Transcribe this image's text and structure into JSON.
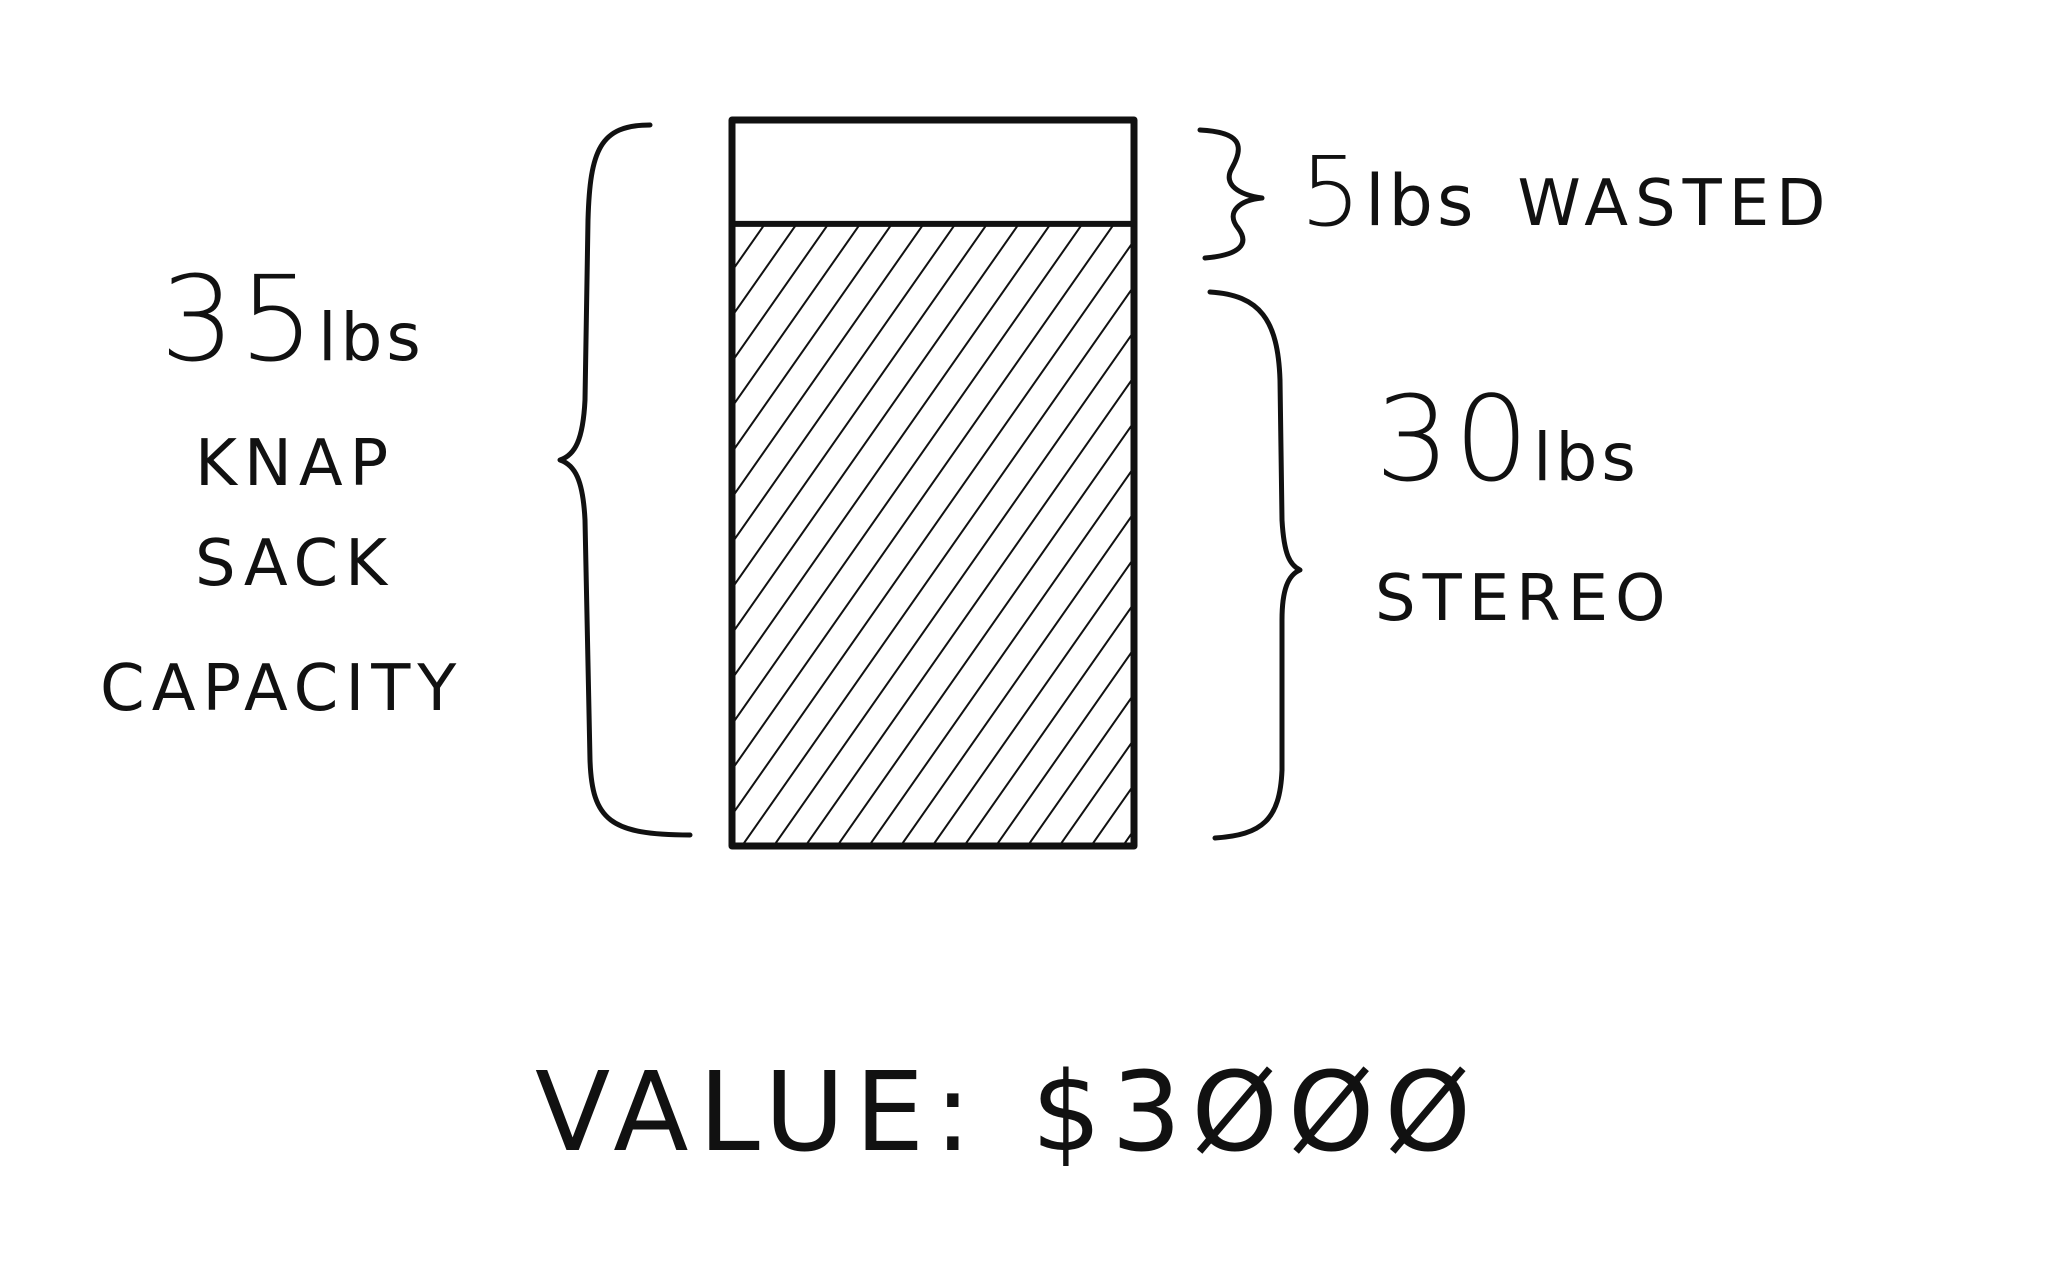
{
  "capacity": {
    "weight": "35",
    "unit": "lbs",
    "label_lines": [
      "KNAP",
      "SACK",
      "CAPACITY"
    ]
  },
  "wasted": {
    "weight": "5",
    "unit": "lbs",
    "label": "WASTED"
  },
  "item": {
    "weight": "30",
    "unit": "lbs",
    "label": "STEREO"
  },
  "value": {
    "label": "VALUE:",
    "amount": "$3ØØØ"
  },
  "fill_fraction": 0.857,
  "colors": {
    "ink": "#111111",
    "paper": "#ffffff"
  }
}
